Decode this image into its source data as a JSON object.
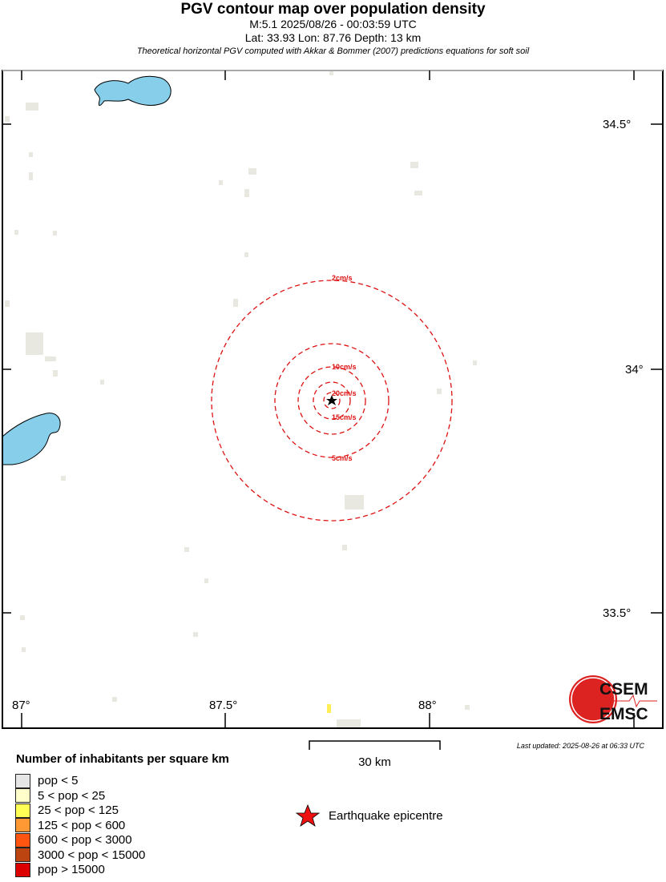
{
  "header": {
    "title": "PGV contour map over population density",
    "line1": "M:5.1 2025/08/26 - 00:03:59 UTC",
    "line2": "Lat: 33.93 Lon: 87.76 Depth: 13 km",
    "line3": "Theoretical horizontal PGV computed with Akkar & Bommer (2007) predictions equations for soft soil"
  },
  "map": {
    "lon_ticks": [
      "87°",
      "87.5°",
      "88°"
    ],
    "lat_ticks": [
      "34.5°",
      "34°",
      "33.5°"
    ],
    "contours": [
      {
        "label": "2cm/s"
      },
      {
        "label": "5cm/s"
      },
      {
        "label": "10cm/s"
      },
      {
        "label": "15cm/s"
      },
      {
        "label": "20cm/s"
      }
    ],
    "contour_color": "#dd1111",
    "water_color": "#87ceeb",
    "epicentre": {
      "lat": 33.93,
      "lon": 87.76
    },
    "logo": "CSEM EMSC"
  },
  "scale": {
    "label": "30 km"
  },
  "last_updated": "Last updated: 2025-08-26 at 06:33 UTC",
  "legend": {
    "title": "Number of inhabitants per square km",
    "items": [
      {
        "label": "pop < 5",
        "color": "#e6e6e6"
      },
      {
        "label": "5 < pop < 25",
        "color": "#ffffcc"
      },
      {
        "label": "25 < pop < 125",
        "color": "#ffff55"
      },
      {
        "label": "125 < pop < 600",
        "color": "#ff9933"
      },
      {
        "label": "600 < pop < 3000",
        "color": "#ff5511"
      },
      {
        "label": "3000 < pop < 15000",
        "color": "#bb4411"
      },
      {
        "label": "pop > 15000",
        "color": "#dd0000"
      }
    ],
    "epicentre_label": "Earthquake epicentre"
  }
}
